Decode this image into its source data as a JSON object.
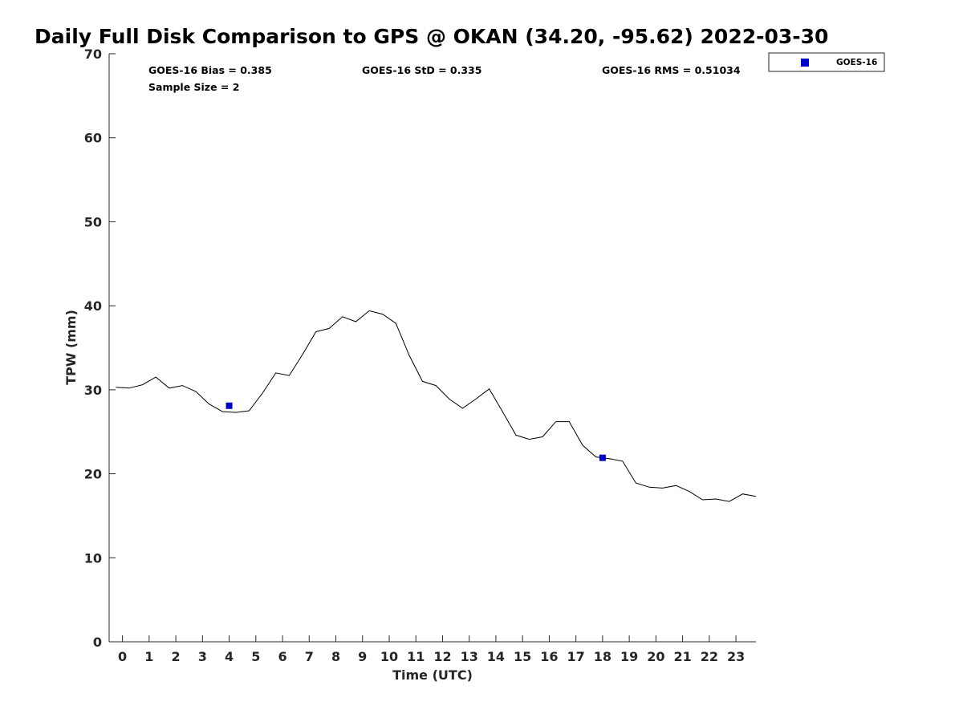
{
  "chart_data": {
    "type": "line",
    "title": "Daily Full Disk Comparison to GPS @ OKAN (34.20, -95.62) 2022-03-30",
    "xlabel": "Time (UTC)",
    "ylabel": "TPW (mm)",
    "xlim": [
      -0.5,
      23.75
    ],
    "ylim": [
      0,
      70
    ],
    "xticks": [
      0,
      1,
      2,
      3,
      4,
      5,
      6,
      7,
      8,
      9,
      10,
      11,
      12,
      13,
      14,
      15,
      16,
      17,
      18,
      19,
      20,
      21,
      22,
      23
    ],
    "yticks": [
      0,
      10,
      20,
      30,
      40,
      50,
      60,
      70
    ],
    "grid": false,
    "legend_position": "top-right",
    "series": [
      {
        "type": "line",
        "color": "#000000",
        "x": [
          -0.25,
          0.25,
          0.75,
          1.25,
          1.75,
          2.25,
          2.75,
          3.25,
          3.75,
          4.25,
          4.75,
          5.25,
          5.75,
          6.25,
          6.75,
          7.25,
          7.75,
          8.25,
          8.75,
          9.25,
          9.75,
          10.25,
          10.75,
          11.25,
          11.75,
          12.25,
          12.75,
          13.25,
          13.75,
          14.25,
          14.75,
          15.25,
          15.75,
          16.25,
          16.75,
          17.25,
          17.75,
          18.25,
          18.75,
          19.25,
          19.75,
          20.25,
          20.75,
          21.25,
          21.75,
          22.25,
          22.75,
          23.25,
          23.75
        ],
        "values": [
          30.3,
          30.2,
          30.6,
          31.5,
          30.2,
          30.5,
          29.8,
          28.3,
          27.4,
          27.3,
          27.5,
          29.6,
          32.0,
          31.7,
          34.2,
          36.9,
          37.3,
          38.7,
          38.1,
          39.4,
          39.0,
          37.9,
          34.1,
          31.0,
          30.5,
          28.9,
          27.8,
          28.9,
          30.1,
          27.4,
          24.6,
          24.1,
          24.4,
          26.2,
          26.2,
          23.4,
          22.0,
          21.8,
          21.5,
          18.9,
          18.4,
          18.3,
          18.6,
          17.9,
          16.9,
          17.0,
          16.7,
          17.6,
          17.3
        ]
      },
      {
        "name": "GOES-16",
        "type": "scatter",
        "color": "#0000cc",
        "x": [
          4,
          18
        ],
        "values": [
          28.1,
          21.9
        ]
      }
    ],
    "annotations": {
      "bias": "GOES-16 Bias = 0.385",
      "std": "GOES-16 StD = 0.335",
      "rms": "GOES-16 RMS = 0.51034",
      "sample": "Sample Size = 2"
    }
  }
}
